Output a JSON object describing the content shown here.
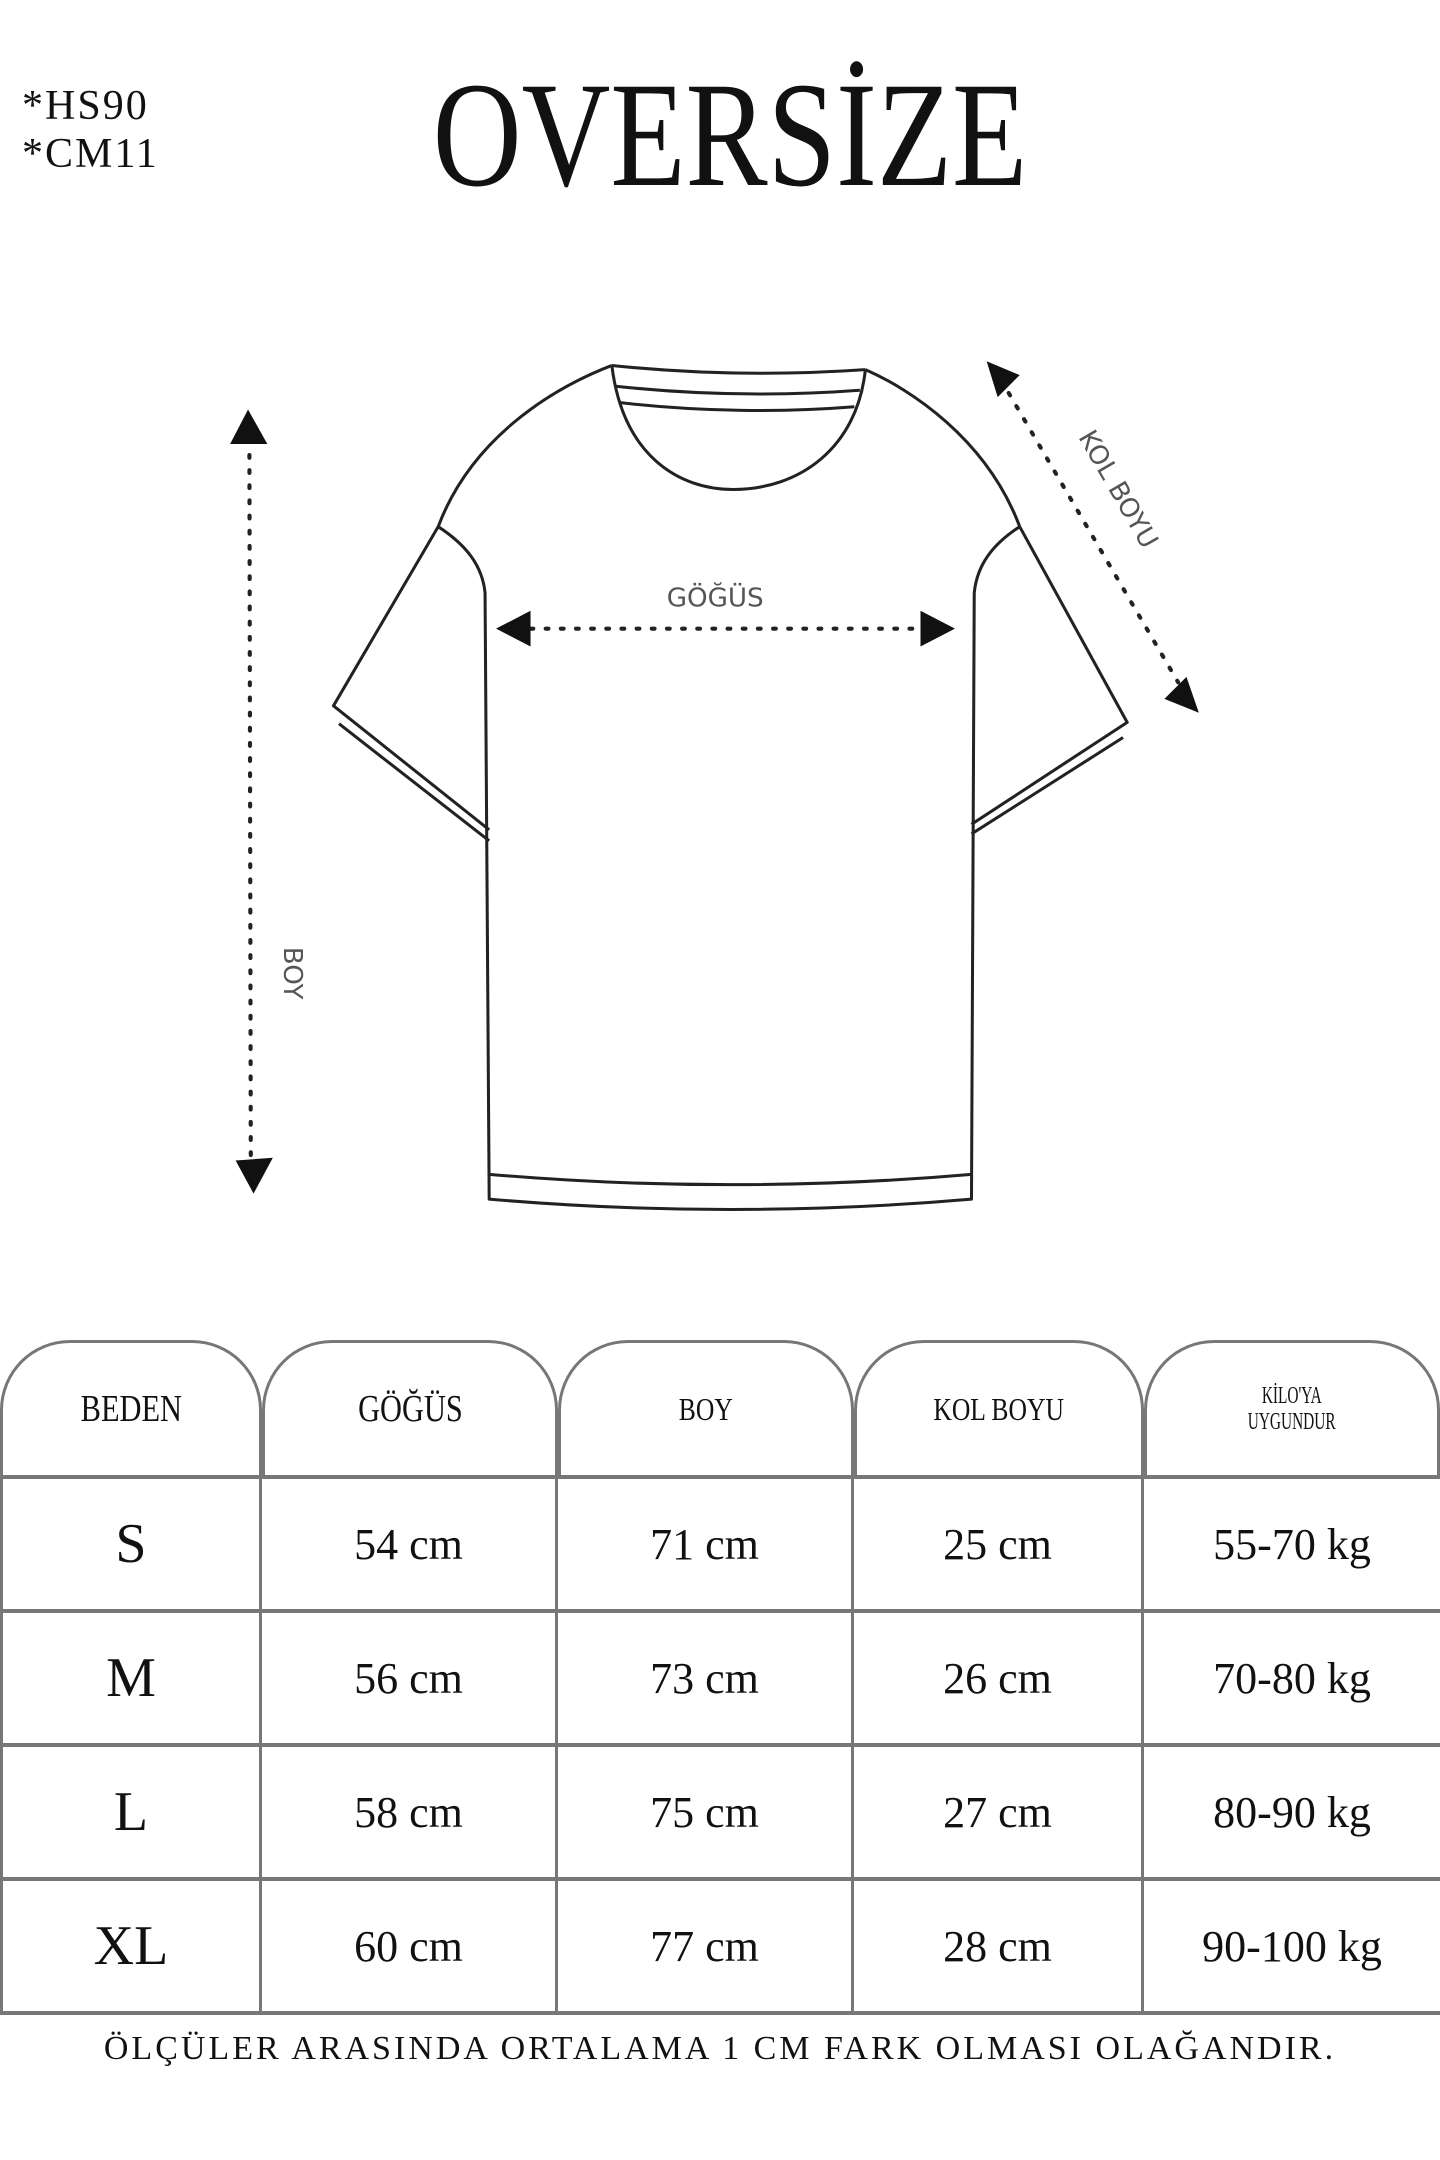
{
  "codes": [
    "*HS90",
    "*CM11"
  ],
  "title": "OVERSİZE",
  "diagram": {
    "chest_label": "GÖĞÜS",
    "length_label": "BOY",
    "sleeve_label": "KOL BOYU"
  },
  "table": {
    "headers": [
      "BEDEN",
      "GÖĞÜS",
      "BOY",
      "KOL BOYU",
      "KİLO'YA UYGUNDUR"
    ],
    "header_last_lines": [
      "KİLO'YA",
      "UYGUNDUR"
    ],
    "rows": [
      [
        "S",
        "54 cm",
        "71 cm",
        "25  cm",
        "55-70 kg"
      ],
      [
        "M",
        "56 cm",
        "73 cm",
        "26 cm",
        "70-80 kg"
      ],
      [
        "L",
        "58 cm",
        "75 cm",
        "27 cm",
        "80-90 kg"
      ],
      [
        "XL",
        "60 cm",
        "77 cm",
        "28 cm",
        "90-100 kg"
      ]
    ]
  },
  "footer": "ÖLÇÜLER ARASINDA ORTALAMA 1 CM FARK OLMASI OLAĞANDIR."
}
